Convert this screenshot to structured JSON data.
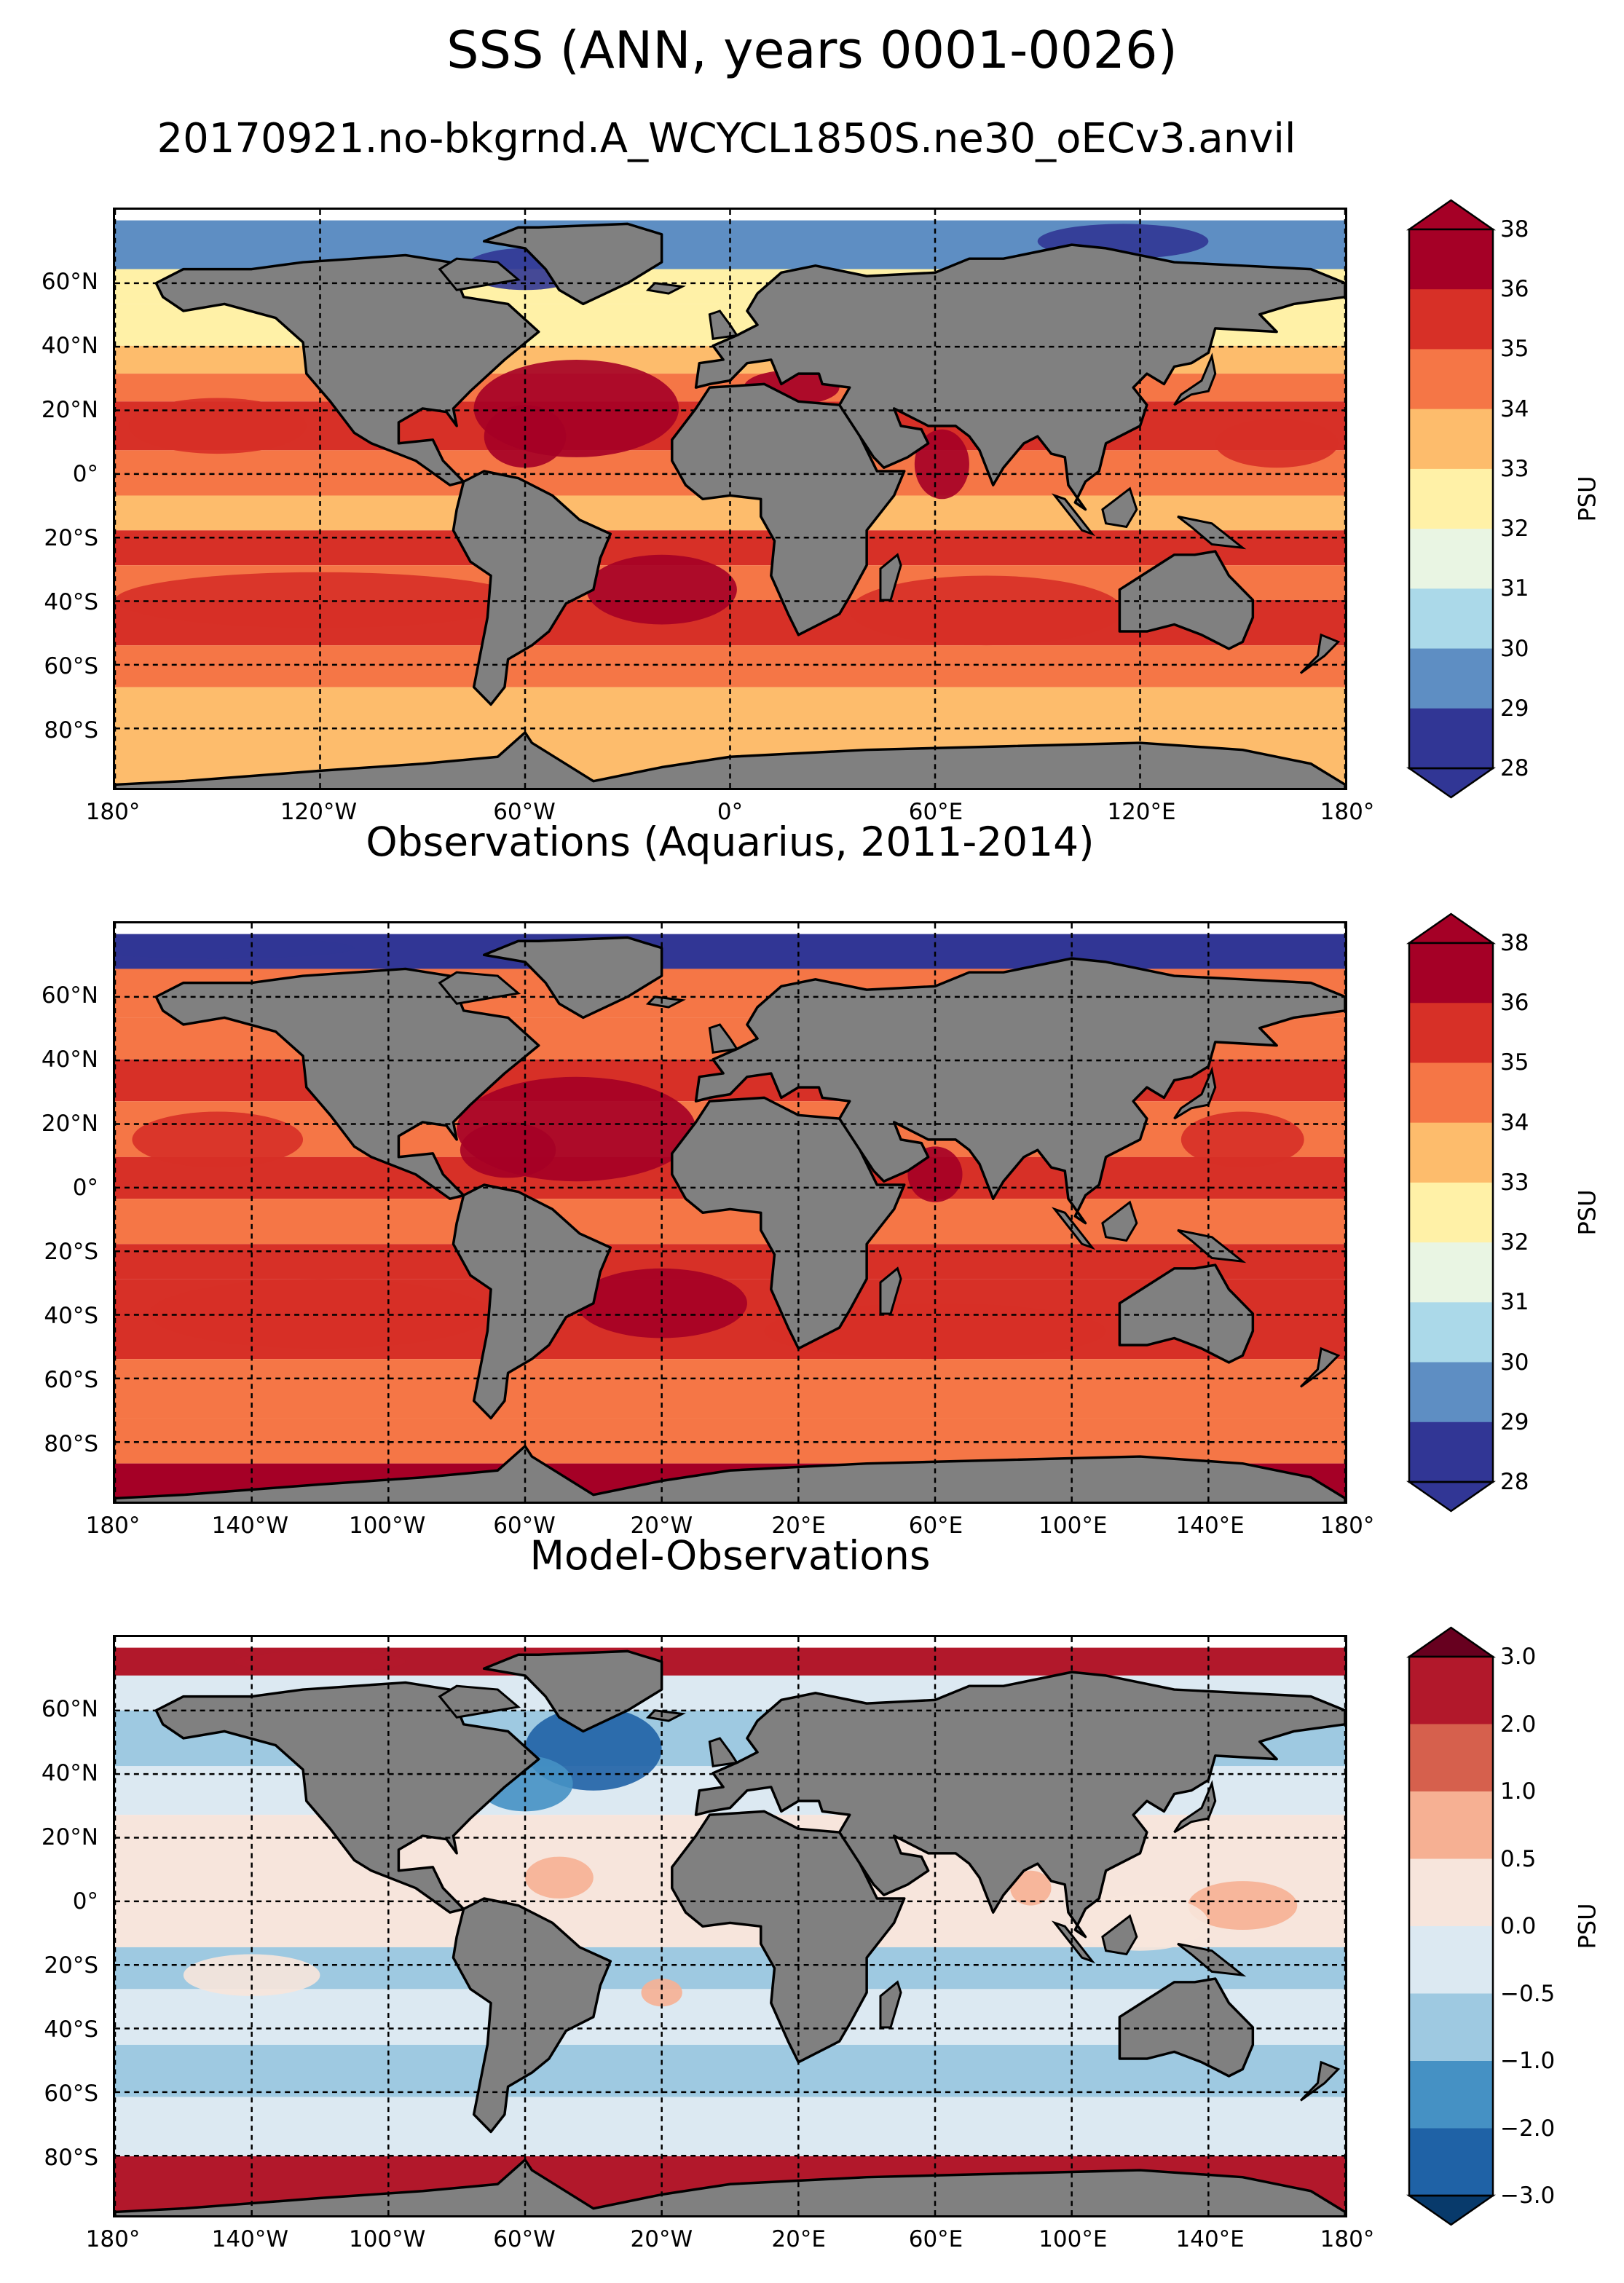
{
  "figure": {
    "suptitle": "SSS (ANN, years 0001-0026)",
    "subtitle": "20170921.no-bkgrnd.A_WCYCL1850S.ne30_oECv3.anvil"
  },
  "colors": {
    "land": "#808080",
    "coast": "#000000",
    "grid": "#000000",
    "no_data": "#ffffff"
  },
  "panels": [
    {
      "id": "model",
      "title": "",
      "lat_ticks": [
        "60°N",
        "40°N",
        "20°N",
        "0°",
        "20°S",
        "40°S",
        "60°S",
        "80°S"
      ],
      "lon_ticks": [
        "180°",
        "120°W",
        "60°W",
        "0°",
        "60°E",
        "120°E",
        "180°"
      ],
      "colorbar": {
        "label": "PSU",
        "ticks": [
          "28",
          "29",
          "30",
          "31",
          "32",
          "33",
          "34",
          "35",
          "36",
          "38"
        ],
        "colors": [
          "#313695",
          "#5e8ec3",
          "#abd9e9",
          "#e9f5e3",
          "#fff1a7",
          "#fdbc6c",
          "#f57646",
          "#d73027",
          "#a50026"
        ],
        "under": "#313695",
        "over": "#a50026"
      }
    },
    {
      "id": "obs",
      "title": "Observations (Aquarius, 2011-2014)",
      "lat_ticks": [
        "60°N",
        "40°N",
        "20°N",
        "0°",
        "20°S",
        "40°S",
        "60°S",
        "80°S"
      ],
      "lon_ticks": [
        "180°",
        "140°W",
        "100°W",
        "60°W",
        "20°W",
        "20°E",
        "60°E",
        "100°E",
        "140°E",
        "180°"
      ],
      "colorbar": {
        "label": "PSU",
        "ticks": [
          "28",
          "29",
          "30",
          "31",
          "32",
          "33",
          "34",
          "35",
          "36",
          "38"
        ],
        "colors": [
          "#313695",
          "#5e8ec3",
          "#abd9e9",
          "#e9f5e3",
          "#fff1a7",
          "#fdbc6c",
          "#f57646",
          "#d73027",
          "#a50026"
        ],
        "under": "#313695",
        "over": "#a50026"
      }
    },
    {
      "id": "diff",
      "title": "Model-Observations",
      "lat_ticks": [
        "60°N",
        "40°N",
        "20°N",
        "0°",
        "20°S",
        "40°S",
        "60°S",
        "80°S"
      ],
      "lon_ticks": [
        "180°",
        "140°W",
        "100°W",
        "60°W",
        "20°W",
        "20°E",
        "60°E",
        "100°E",
        "140°E",
        "180°"
      ],
      "colorbar": {
        "label": "PSU",
        "ticks": [
          "3.0",
          "2.0",
          "1.0",
          "0.5",
          "0.0",
          "−0.5",
          "−1.0",
          "−2.0",
          "−3.0"
        ],
        "colors": [
          "#1f62a6",
          "#4591c4",
          "#9ec9e1",
          "#dce9f2",
          "#f7e5dc",
          "#f6b093",
          "#d6604d",
          "#b2182b"
        ],
        "under": "#083a6b",
        "over": "#67001f"
      }
    }
  ]
}
